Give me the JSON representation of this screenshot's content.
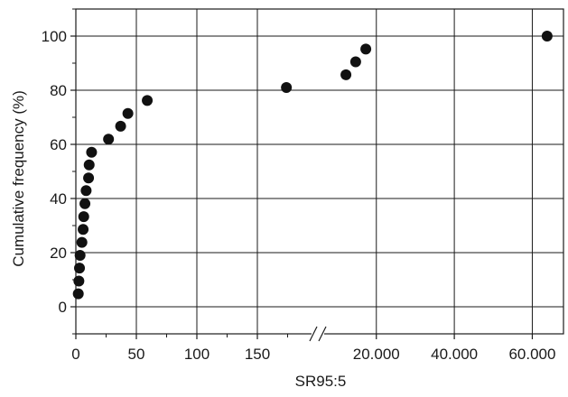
{
  "chart_data": {
    "type": "scatter",
    "title": "",
    "xlabel": "SR95:5",
    "ylabel": "Cumulative frequency (%)",
    "grid": true,
    "x_axis": {
      "broken": true,
      "break_marker": "//",
      "left_segment": {
        "range": [
          0,
          200
        ],
        "ticks": [
          0,
          50,
          100,
          150
        ],
        "tick_labels": [
          "0",
          "50",
          "100",
          "150"
        ]
      },
      "right_segment": {
        "range": [
          5000,
          68000
        ],
        "ticks": [
          20000,
          40000,
          60000
        ],
        "tick_labels": [
          "20.000",
          "40.000",
          "60.000"
        ]
      }
    },
    "y_axis": {
      "range": [
        -10,
        110
      ],
      "ticks": [
        0,
        20,
        40,
        60,
        80,
        100
      ],
      "tick_labels": [
        "0",
        "20",
        "40",
        "60",
        "80",
        "100"
      ]
    },
    "series": [
      {
        "marker_color": "#111111",
        "points": [
          {
            "x": 2,
            "y": 4.8
          },
          {
            "x": 2.5,
            "y": 9.5
          },
          {
            "x": 3,
            "y": 14.3
          },
          {
            "x": 3.5,
            "y": 19
          },
          {
            "x": 5,
            "y": 23.8
          },
          {
            "x": 6,
            "y": 28.6
          },
          {
            "x": 6.5,
            "y": 33.3
          },
          {
            "x": 7.5,
            "y": 38.1
          },
          {
            "x": 8.5,
            "y": 42.9
          },
          {
            "x": 10.5,
            "y": 47.6
          },
          {
            "x": 11,
            "y": 52.4
          },
          {
            "x": 13,
            "y": 57.1
          },
          {
            "x": 27,
            "y": 61.9
          },
          {
            "x": 37,
            "y": 66.7
          },
          {
            "x": 43,
            "y": 71.4
          },
          {
            "x": 59,
            "y": 76.2
          },
          {
            "x": 174,
            "y": 81
          },
          {
            "x": 12200,
            "y": 85.7
          },
          {
            "x": 14700,
            "y": 90.5
          },
          {
            "x": 17300,
            "y": 95.2
          },
          {
            "x": 63800,
            "y": 100
          }
        ]
      }
    ]
  }
}
